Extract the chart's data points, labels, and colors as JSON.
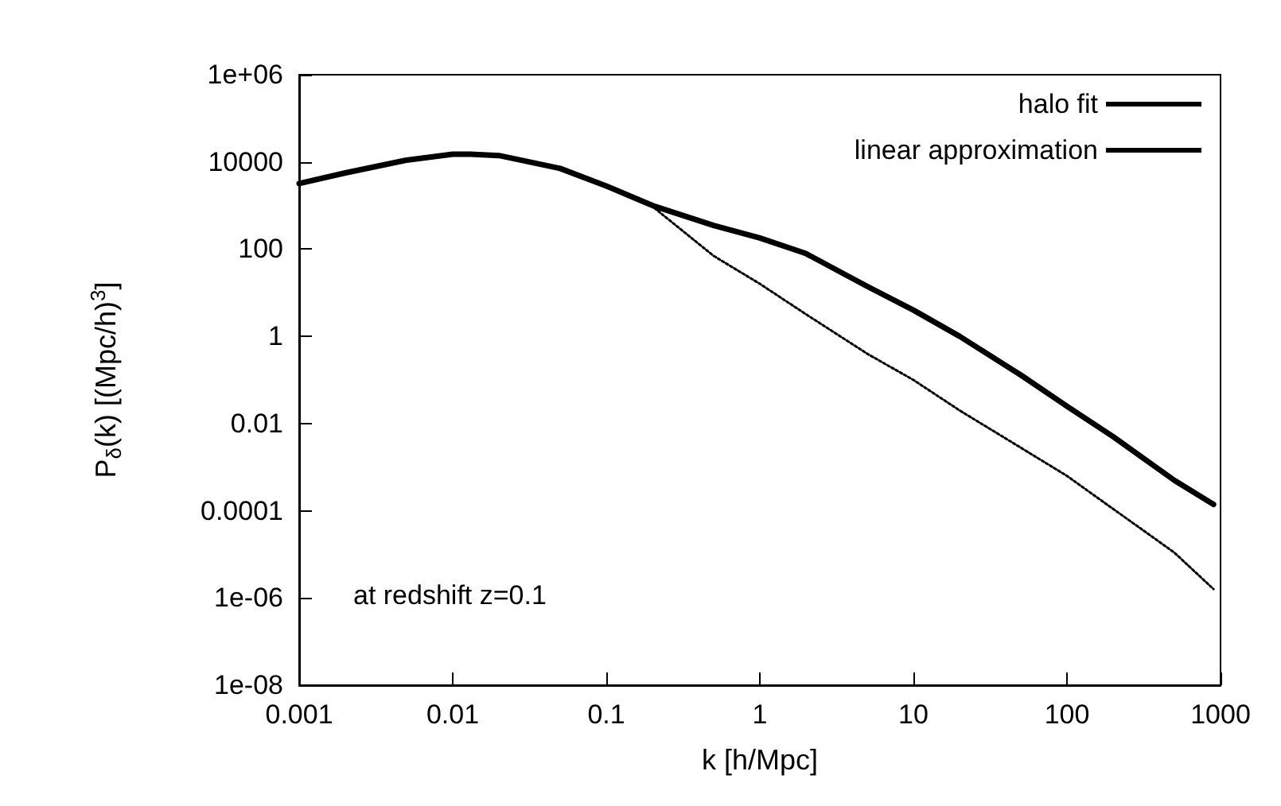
{
  "chart_data": {
    "type": "line",
    "xlabel": "k [h/Mpc]",
    "ylabel": "P$_{δ}$(k) [(Mpc/h)$^{3}$]",
    "log": "xy",
    "grid": false,
    "legend": "top right",
    "marker": "none",
    "xlim": [
      0.001,
      1000
    ],
    "xticks": [
      0.001,
      0.01,
      0.1,
      1,
      10,
      100,
      1000
    ],
    "ylim": [
      1e-08,
      1000000
    ],
    "yticks": [
      {
        "value": 1e-08,
        "label": "1e-08"
      },
      {
        "value": 1e-06,
        "label": "1e-06"
      },
      0.0001,
      0.01,
      1,
      100,
      10000,
      {
        "value": 1000000,
        "label": "1e+06"
      }
    ],
    "annotations": [
      "at redshift z=0.1"
    ],
    "series": [
      {
        "name": "halo fit",
        "color": "#000000",
        "line_style": "solid",
        "x": [
          0.001,
          0.002,
          0.005,
          0.01,
          0.013,
          0.02,
          0.05,
          0.1,
          0.2,
          0.5,
          1,
          2,
          5,
          10,
          20,
          50,
          100,
          200,
          500,
          900
        ],
        "values": [
          3200,
          5600,
          11000,
          15000,
          15000,
          14000,
          7100,
          2800,
          1000,
          350,
          180,
          79,
          14,
          4,
          1,
          0.13,
          0.025,
          0.005,
          0.0005,
          0.00014
        ]
      },
      {
        "name": "linear approximation",
        "color": "#000000",
        "line_style": "dotted",
        "x": [
          0.001,
          0.002,
          0.005,
          0.01,
          0.013,
          0.02,
          0.05,
          0.1,
          0.2,
          0.5,
          1,
          2,
          5,
          10,
          20,
          50,
          100,
          200,
          500,
          900
        ],
        "values": [
          3200,
          5600,
          11000,
          15000,
          15000,
          14000,
          7100,
          2800,
          950,
          70,
          16,
          3.2,
          0.4,
          0.1,
          0.02,
          0.0028,
          0.00063,
          0.00011,
          1.1e-05,
          1.6e-06
        ]
      }
    ]
  }
}
